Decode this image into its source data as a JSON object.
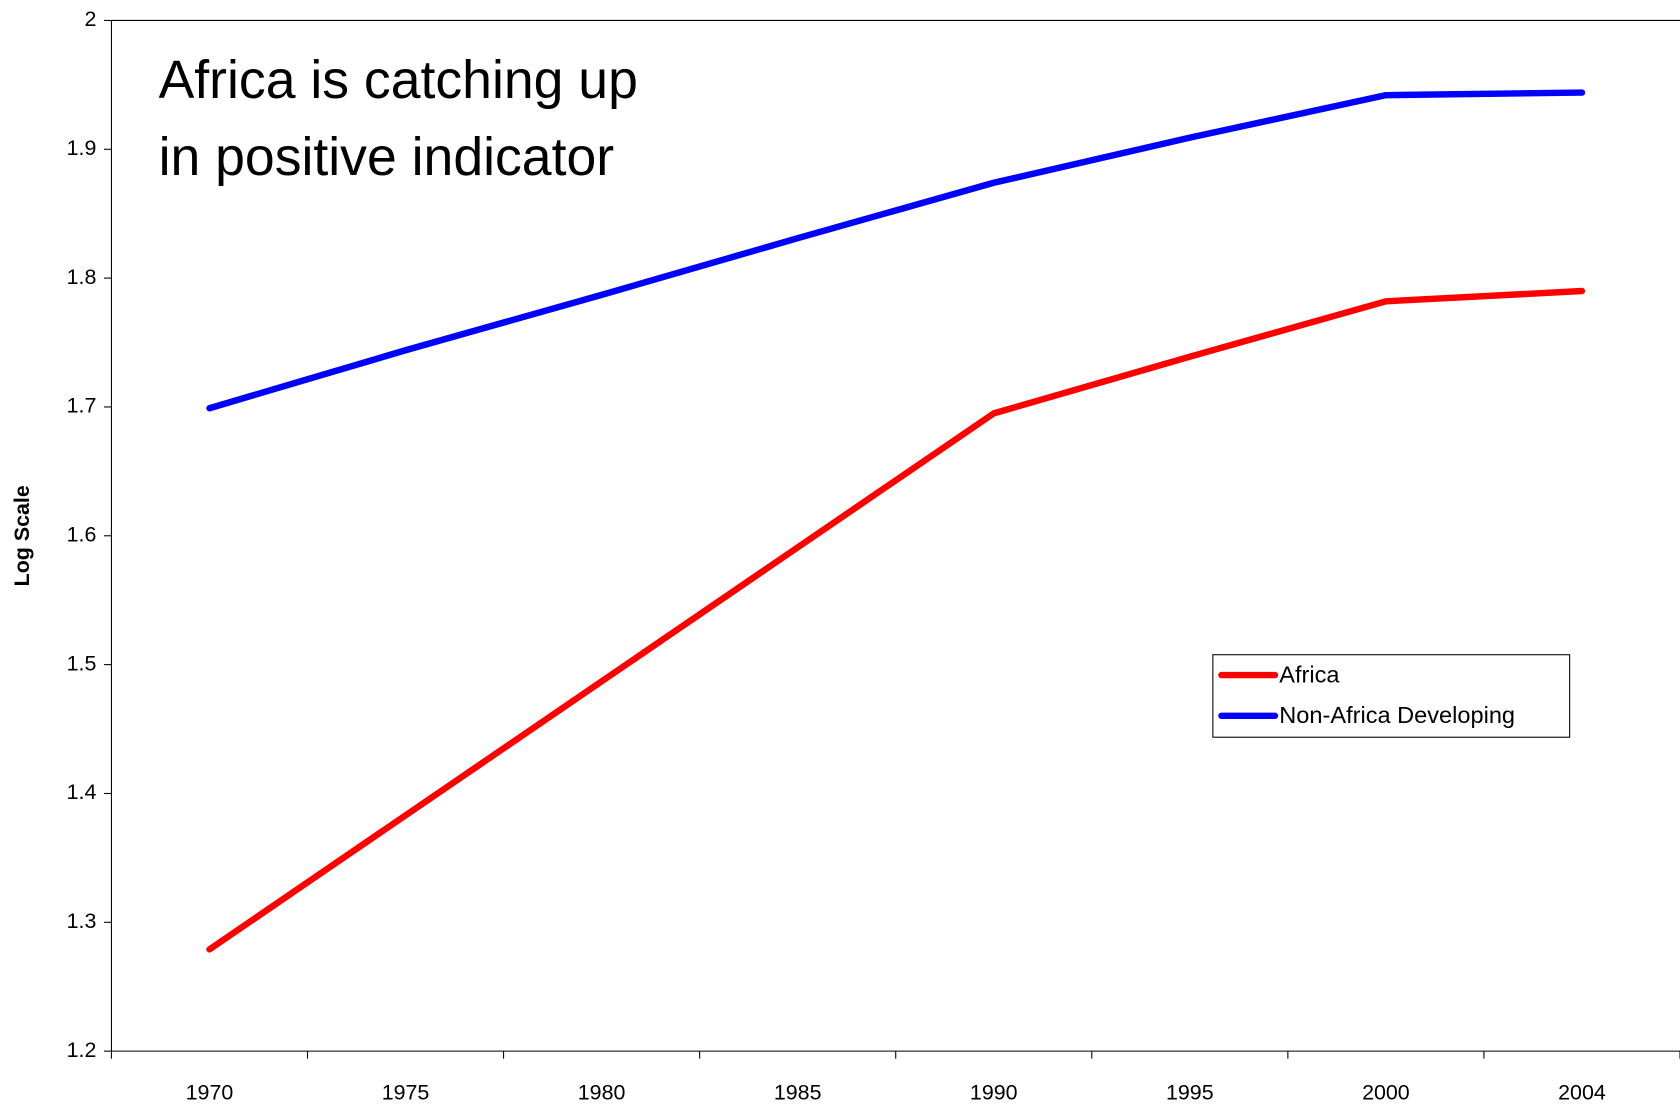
{
  "chart_data": {
    "type": "line",
    "annotation": [
      "Africa is catching up",
      "in positive indicator"
    ],
    "ylabel": "Log Scale",
    "categories": [
      "1970",
      "1975",
      "1980",
      "1985",
      "1990",
      "1995",
      "2000",
      "2004"
    ],
    "series": [
      {
        "name": "Africa",
        "color": "#ff0000",
        "values": [
          1.279,
          1.383,
          1.487,
          1.591,
          1.695,
          1.739,
          1.782,
          1.79
        ]
      },
      {
        "name": "Non-Africa Developing",
        "color": "#0000ff",
        "values": [
          1.699,
          1.744,
          1.787,
          1.831,
          1.874,
          1.909,
          1.942,
          1.944
        ]
      }
    ],
    "ylim": [
      1.2,
      2
    ],
    "yticks": [
      1.2,
      1.3,
      1.4,
      1.5,
      1.6,
      1.7,
      1.8,
      1.9,
      2
    ],
    "grid": false,
    "legend": "right"
  }
}
